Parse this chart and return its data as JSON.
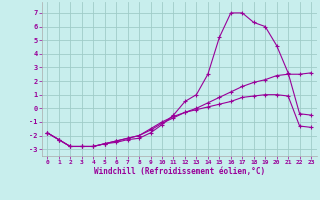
{
  "xlabel": "Windchill (Refroidissement éolien,°C)",
  "background_color": "#c8eeed",
  "grid_color": "#a0ccc8",
  "line_color": "#990099",
  "xlim": [
    -0.5,
    23.5
  ],
  "ylim": [
    -3.5,
    7.8
  ],
  "yticks": [
    -3,
    -2,
    -1,
    0,
    1,
    2,
    3,
    4,
    5,
    6,
    7
  ],
  "xticks": [
    0,
    1,
    2,
    3,
    4,
    5,
    6,
    7,
    8,
    9,
    10,
    11,
    12,
    13,
    14,
    15,
    16,
    17,
    18,
    19,
    20,
    21,
    22,
    23
  ],
  "series": [
    {
      "x": [
        0,
        1,
        2,
        3,
        4,
        5,
        6,
        7,
        8,
        9,
        10,
        11,
        12,
        13,
        14,
        15,
        16,
        17,
        18,
        19,
        20,
        21,
        22,
        23
      ],
      "y": [
        -1.8,
        -2.3,
        -2.8,
        -2.8,
        -2.8,
        -2.6,
        -2.5,
        -2.3,
        -2.2,
        -1.8,
        -1.2,
        -0.5,
        0.5,
        1.0,
        2.5,
        5.2,
        7.0,
        7.0,
        6.3,
        6.0,
        4.6,
        2.6,
        -0.4,
        -0.5
      ]
    },
    {
      "x": [
        0,
        1,
        2,
        3,
        4,
        5,
        6,
        7,
        8,
        9,
        10,
        11,
        12,
        13,
        14,
        15,
        16,
        17,
        18,
        19,
        20,
        21,
        22,
        23
      ],
      "y": [
        -1.8,
        -2.3,
        -2.8,
        -2.8,
        -2.8,
        -2.6,
        -2.4,
        -2.2,
        -2.0,
        -1.6,
        -1.1,
        -0.7,
        -0.3,
        0.0,
        0.4,
        0.8,
        1.2,
        1.6,
        1.9,
        2.1,
        2.4,
        2.5,
        2.5,
        2.6
      ]
    },
    {
      "x": [
        0,
        1,
        2,
        3,
        4,
        5,
        6,
        7,
        8,
        9,
        10,
        11,
        12,
        13,
        14,
        15,
        16,
        17,
        18,
        19,
        20,
        21,
        22,
        23
      ],
      "y": [
        -1.8,
        -2.3,
        -2.8,
        -2.8,
        -2.8,
        -2.6,
        -2.4,
        -2.2,
        -2.0,
        -1.5,
        -1.0,
        -0.6,
        -0.3,
        -0.1,
        0.1,
        0.3,
        0.5,
        0.8,
        0.9,
        1.0,
        1.0,
        0.9,
        -1.3,
        -1.4
      ]
    }
  ]
}
